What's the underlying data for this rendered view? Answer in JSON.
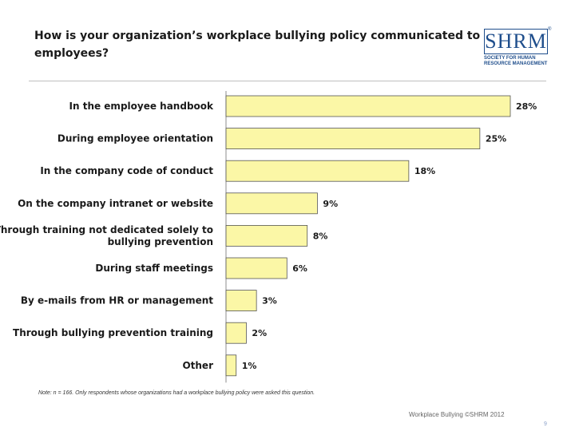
{
  "slide": {
    "title": "How is your organization’s workplace bullying policy communicated to employees?",
    "note": "Note: n = 166. Only respondents whose organizations had a workplace bullying policy were asked this question.",
    "footer": "Workplace Bullying ©SHRM 2012",
    "page_number": "9"
  },
  "logo": {
    "mark": "SHRM",
    "registered": "®",
    "line1": "SOCIETY FOR HUMAN",
    "line2": "RESOURCE MANAGEMENT"
  },
  "colors": {
    "bar_fill": "#fbf7a6",
    "bar_stroke": "#555555",
    "accent": "#1f4e8c"
  },
  "chart_data": {
    "type": "bar",
    "orientation": "horizontal",
    "categories": [
      [
        "In the employee handbook"
      ],
      [
        "During employee orientation"
      ],
      [
        "In the company code of conduct"
      ],
      [
        "On the company intranet or website"
      ],
      [
        "Through training not dedicated solely to",
        "bullying prevention"
      ],
      [
        "During staff meetings"
      ],
      [
        "By e-mails from HR or management"
      ],
      [
        "Through bullying prevention training"
      ],
      [
        "Other"
      ]
    ],
    "values": [
      28,
      25,
      18,
      9,
      8,
      6,
      3,
      2,
      1
    ],
    "value_labels": [
      "28%",
      "25%",
      "18%",
      "9%",
      "8%",
      "6%",
      "3%",
      "2%",
      "1%"
    ],
    "unit": "%",
    "xlim": [
      0,
      28
    ],
    "grid": false,
    "legend": "none"
  }
}
